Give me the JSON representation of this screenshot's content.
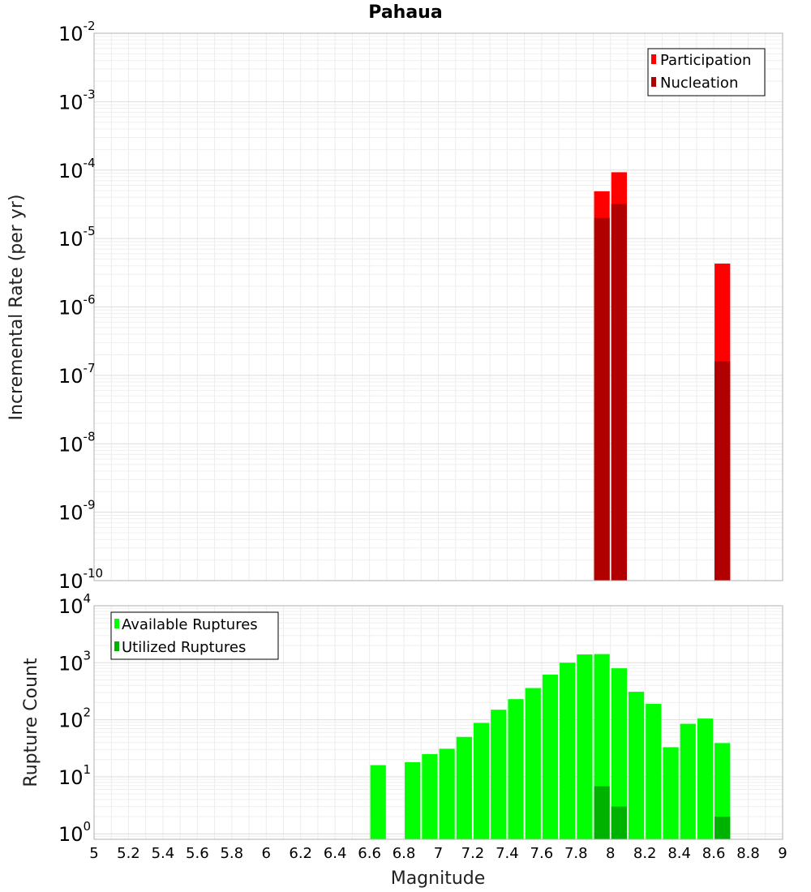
{
  "chart_data": [
    {
      "type": "bar",
      "title": "Pahaua",
      "xlabel": "",
      "ylabel": "Incremental Rate (per yr)",
      "xlim": [
        5,
        9
      ],
      "ylim": [
        1e-10,
        0.01
      ],
      "yscale": "log",
      "ytick_exponents": [
        -10,
        -9,
        -8,
        -7,
        -6,
        -5,
        -4,
        -3,
        -2
      ],
      "grid": true,
      "legend": "top-right",
      "bar_width": 0.1,
      "x": [
        7.95,
        8.05,
        8.65
      ],
      "series": [
        {
          "name": "Participation",
          "color": "#ff0000",
          "values": [
            4.9e-05,
            9.3e-05,
            4.3e-06
          ]
        },
        {
          "name": "Nucleation",
          "color": "#b00000",
          "values": [
            2e-05,
            3.2e-05,
            1.6e-07
          ]
        }
      ]
    },
    {
      "type": "bar",
      "title": "",
      "xlabel": "Magnitude",
      "ylabel": "Rupture Count",
      "xlim": [
        5,
        9
      ],
      "ylim": [
        0.8,
        10000
      ],
      "yscale": "log",
      "ytick_exponents": [
        0,
        1,
        2,
        3,
        4
      ],
      "xticks": [
        "5",
        "5.2",
        "5.4",
        "5.6",
        "5.8",
        "6",
        "6.2",
        "6.4",
        "6.6",
        "6.8",
        "7",
        "7.2",
        "7.4",
        "7.6",
        "7.8",
        "8",
        "8.2",
        "8.4",
        "8.6",
        "8.8",
        "9"
      ],
      "grid": true,
      "legend": "top-left",
      "bar_width": 0.1,
      "x": [
        6.65,
        6.85,
        6.95,
        7.05,
        7.15,
        7.25,
        7.35,
        7.45,
        7.55,
        7.65,
        7.75,
        7.85,
        7.95,
        8.05,
        8.15,
        8.25,
        8.35,
        8.45,
        8.55,
        8.65
      ],
      "series": [
        {
          "name": "Available Ruptures",
          "color": "#00ff00",
          "values": [
            16,
            18,
            25,
            31,
            50,
            88,
            150,
            230,
            360,
            620,
            1000,
            1400,
            1420,
            800,
            310,
            190,
            33,
            85,
            105,
            39
          ]
        },
        {
          "name": "Utilized Ruptures",
          "color": "#00b200",
          "values": [
            null,
            null,
            null,
            null,
            null,
            null,
            null,
            null,
            null,
            null,
            null,
            null,
            6.8,
            3.0,
            null,
            null,
            null,
            null,
            null,
            2.0
          ]
        }
      ]
    }
  ]
}
